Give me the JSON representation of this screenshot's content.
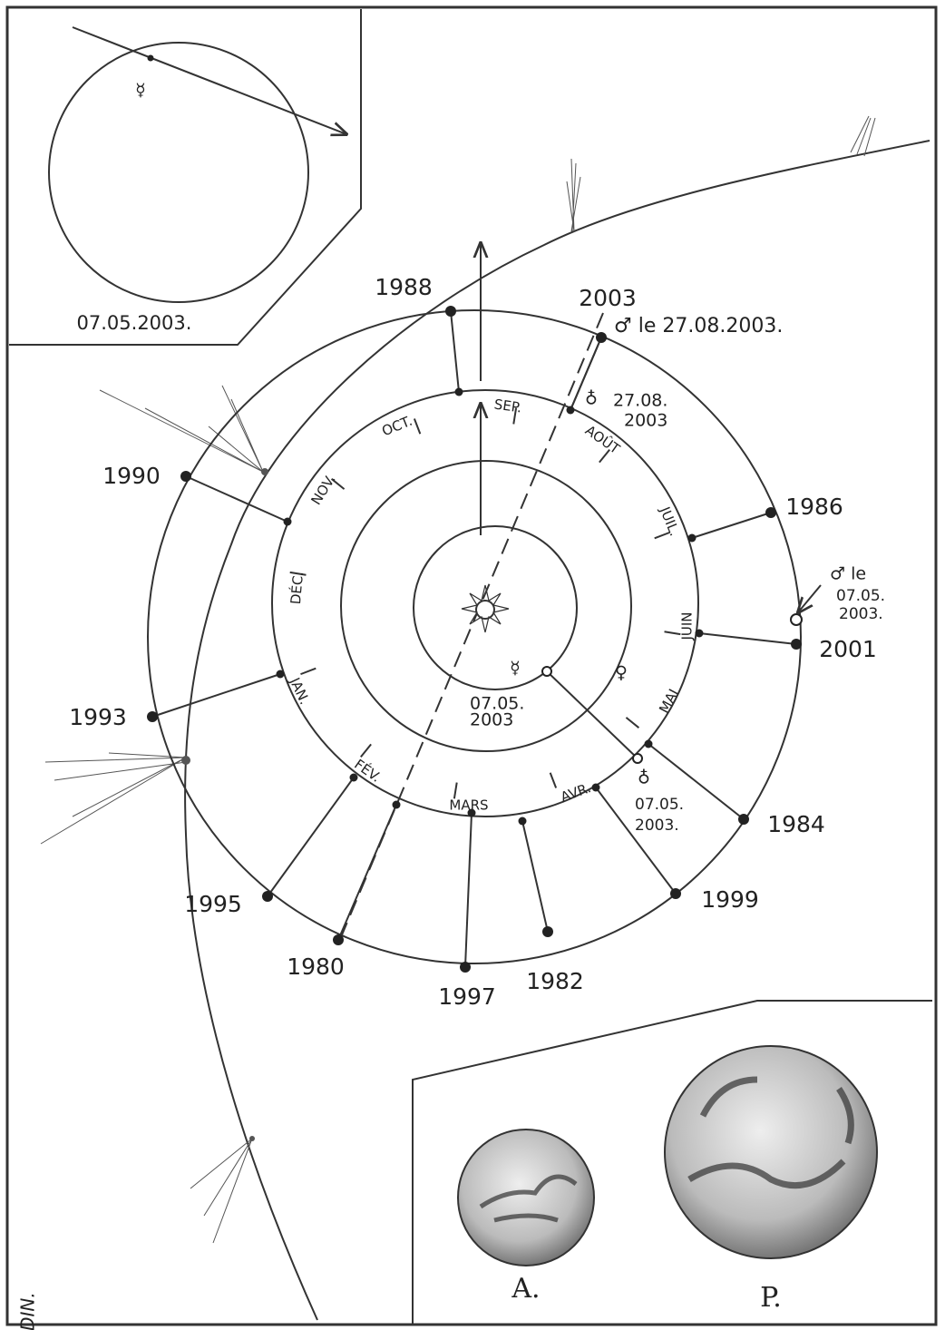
{
  "inset_top": {
    "date": "07.05.2003."
  },
  "orbit": {
    "years": [
      "1988",
      "2003",
      "1990",
      "1986",
      "2001",
      "1993",
      "1984",
      "1995",
      "1999",
      "1980",
      "1997",
      "1982"
    ],
    "months": [
      "SEP.",
      "OCT.",
      "NOV.",
      "DÉC.",
      "JAN.",
      "FÉV.",
      "MARS",
      "AVR.",
      "MAI",
      "JUIN",
      "JUIL.",
      "AOÛT"
    ]
  },
  "annotations": {
    "mars_opposition": "♂ le 27.08.2003.",
    "earth_opposition": [
      "♁",
      "27.08.",
      "2003"
    ],
    "mars_may": [
      "♂ le",
      "07.05.",
      "2003."
    ],
    "mercury_may": [
      "☿",
      "07.05.",
      "2003"
    ],
    "earth_may": [
      "♁",
      "07.05.",
      "2003."
    ],
    "venus": "♀"
  },
  "inset_bottom": {
    "labels": [
      "A.",
      "P."
    ]
  },
  "signature": "D.BARDIN."
}
